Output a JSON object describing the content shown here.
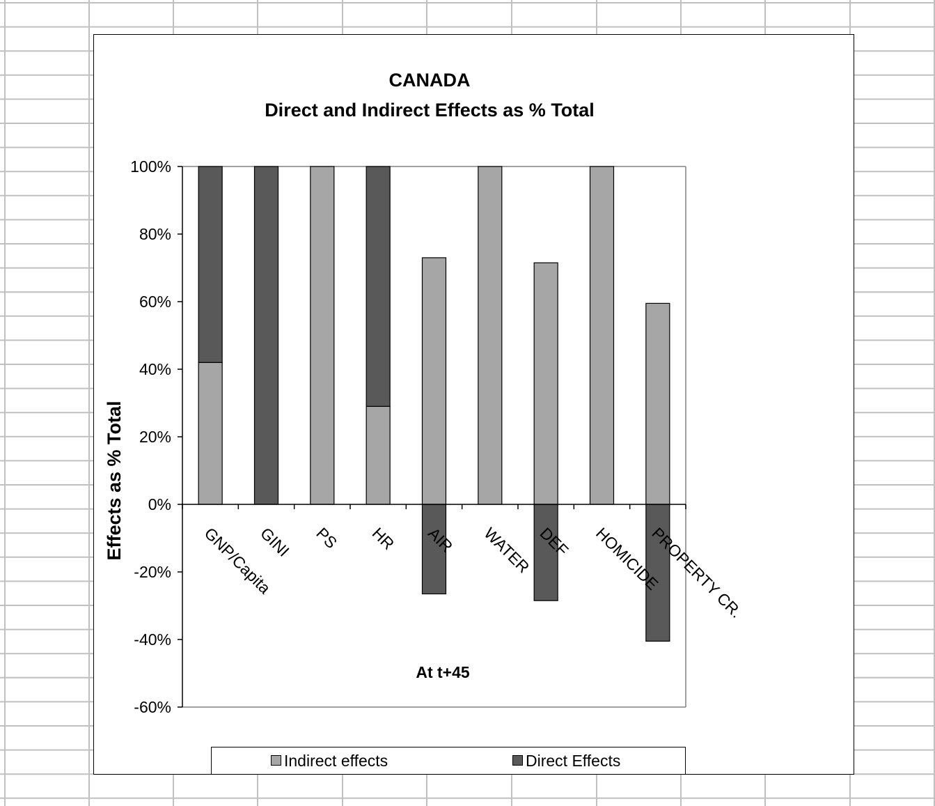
{
  "chart_data": {
    "type": "bar",
    "stacked": true,
    "title": "CANADA",
    "subtitle": "Direct and Indirect Effects as % Total",
    "xlabel": "At t+45",
    "ylabel": "Effects as % Total",
    "ylim": [
      -60,
      100
    ],
    "yticks": [
      "100%",
      "80%",
      "60%",
      "40%",
      "20%",
      "0%",
      "-20%",
      "-40%",
      "-60%"
    ],
    "categories": [
      "GNP/Capita",
      "GINI",
      "PS",
      "HR",
      "AIR",
      "WATER",
      "DEF",
      "HOMICIDE",
      "PROPERTY CR."
    ],
    "series": [
      {
        "name": "Indirect effects",
        "values": [
          42,
          0,
          100,
          29,
          73,
          100,
          71.5,
          100,
          59.5
        ]
      },
      {
        "name": "Direct Effects",
        "values": [
          58,
          100,
          0,
          71,
          -26.5,
          0,
          -28.5,
          0,
          -40.5
        ]
      }
    ],
    "legend_position": "bottom",
    "grid": false,
    "colors": {
      "indirect": "#a6a6a6",
      "direct": "#595959",
      "axis": "#808080",
      "sheet_grid": "#c0c0c0"
    }
  }
}
